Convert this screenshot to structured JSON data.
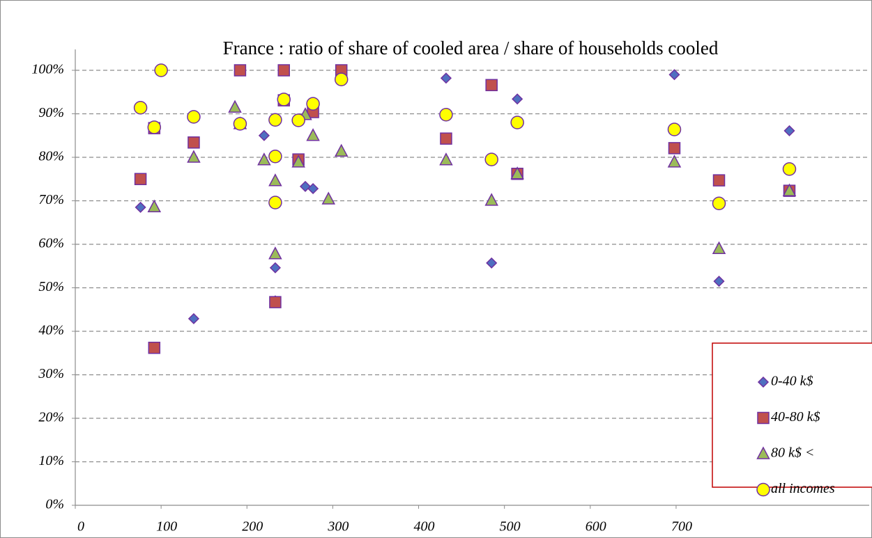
{
  "chart_data": {
    "type": "scatter",
    "title": "France : ratio of share of cooled area / share of households cooled",
    "xlim": [
      0,
      925
    ],
    "xticks": [
      0,
      100,
      200,
      300,
      400,
      500,
      600,
      700
    ],
    "ylim": [
      0,
      100
    ],
    "yticks": [
      {
        "value": 0,
        "label": "0%"
      },
      {
        "value": 10,
        "label": "10%"
      },
      {
        "value": 20,
        "label": "20%"
      },
      {
        "value": 30,
        "label": "30%"
      },
      {
        "value": 40,
        "label": "40%"
      },
      {
        "value": 50,
        "label": "50%"
      },
      {
        "value": 60,
        "label": "60%"
      },
      {
        "value": 70,
        "label": "70%"
      },
      {
        "value": 80,
        "label": "80%"
      },
      {
        "value": 90,
        "label": "90%"
      },
      {
        "value": 100,
        "label": "100%"
      }
    ],
    "grid": true,
    "legend": "right",
    "series": [
      {
        "name": "0-40 k$",
        "color": "#4f6fc0",
        "marker": "diamond",
        "x": [
          76,
          138,
          220,
          233,
          233,
          268,
          277,
          432,
          485,
          515,
          698,
          750,
          832
        ],
        "y": [
          68.5,
          42.9,
          85.0,
          54.6,
          47.0,
          73.3,
          72.8,
          98.2,
          55.7,
          93.4,
          99.0,
          51.5,
          86.1
        ]
      },
      {
        "name": "40-80 k$",
        "color": "#c0504d",
        "marker": "square",
        "x": [
          76,
          92,
          138,
          192,
          243,
          243,
          233,
          92,
          260,
          277,
          310,
          432,
          485,
          515,
          698,
          750,
          832
        ],
        "y": [
          75.0,
          86.7,
          83.4,
          100,
          100,
          93.1,
          46.7,
          36.2,
          79.5,
          90.4,
          100,
          84.3,
          96.6,
          76.2,
          82.1,
          74.7,
          72.3
        ]
      },
      {
        "name": "80 k$ <",
        "color": "#9bbb59",
        "marker": "triangle",
        "x": [
          92,
          138,
          186,
          192,
          220,
          233,
          233,
          260,
          268,
          277,
          295,
          310,
          432,
          485,
          515,
          698,
          750,
          832
        ],
        "y": [
          68.6,
          80.0,
          91.5,
          87.7,
          79.4,
          74.6,
          57.8,
          78.9,
          89.8,
          85.0,
          70.4,
          81.4,
          79.4,
          70.1,
          76.2,
          78.9,
          59.0,
          72.3
        ]
      },
      {
        "name": "all incomes",
        "color": "#ffff00",
        "marker": "circle",
        "x": [
          76,
          92,
          100,
          138,
          192,
          233,
          243,
          233,
          233,
          260,
          277,
          310,
          432,
          485,
          515,
          698,
          750,
          832
        ],
        "y": [
          91.4,
          86.9,
          100,
          89.3,
          87.7,
          88.6,
          93.3,
          80.2,
          69.6,
          88.5,
          92.3,
          97.9,
          89.8,
          79.5,
          88.0,
          86.4,
          69.4,
          77.3
        ]
      }
    ]
  }
}
